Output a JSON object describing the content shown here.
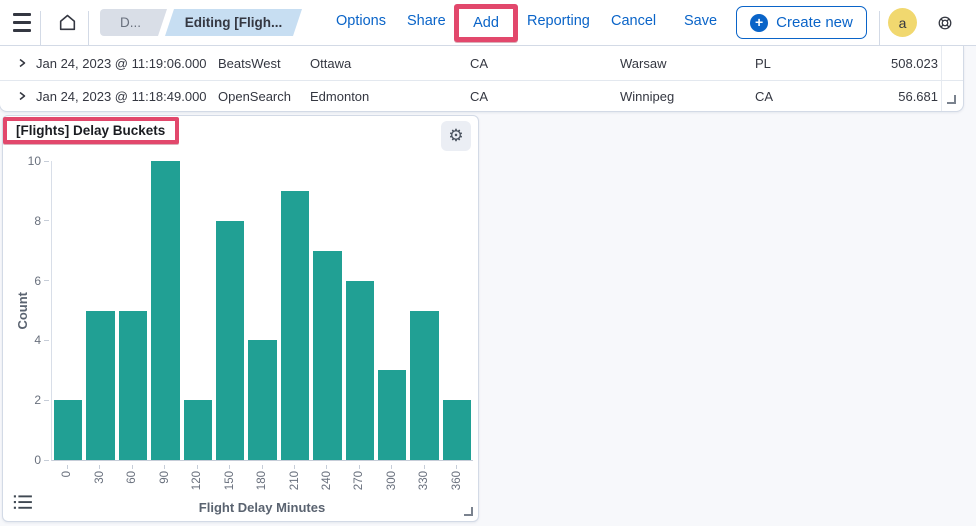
{
  "topnav": {
    "breadcrumbs": [
      "D...",
      "Editing [Fligh..."
    ],
    "links": [
      "Options",
      "Share",
      "Add",
      "Reporting",
      "Cancel",
      "Save"
    ],
    "create_new_label": "Create new",
    "avatar_initial": "a"
  },
  "table": {
    "rows": [
      {
        "timestamp": "Jan 24, 2023 @ 11:19:06.000",
        "carrier": "BeatsWest",
        "origin_city": "Ottawa",
        "origin_country": "CA",
        "dest_city": "Warsaw",
        "dest_country": "PL",
        "distance": "508.023"
      },
      {
        "timestamp": "Jan 24, 2023 @ 11:18:49.000",
        "carrier": "OpenSearch",
        "origin_city": "Edmonton",
        "origin_country": "CA",
        "dest_city": "Winnipeg",
        "dest_country": "CA",
        "distance": "56.681"
      }
    ]
  },
  "panel": {
    "title": "[Flights] Delay Buckets"
  },
  "chart_data": {
    "type": "bar",
    "title": "[Flights] Delay Buckets",
    "categories": [
      "0",
      "30",
      "60",
      "90",
      "120",
      "150",
      "180",
      "210",
      "240",
      "270",
      "300",
      "330",
      "360"
    ],
    "values": [
      2,
      5,
      5,
      10,
      2,
      8,
      4,
      9,
      7,
      6,
      3,
      5,
      2
    ],
    "xlabel": "Flight Delay Minutes",
    "ylabel": "Count",
    "ylim": [
      0,
      10
    ],
    "yticks": [
      0,
      2,
      4,
      6,
      8,
      10
    ],
    "bar_color": "#21A094",
    "grid": false,
    "legend": "none"
  },
  "icons": {
    "menu": "menu-icon",
    "home": "home-icon",
    "plus": "+",
    "gear": "⚙",
    "help": "lifebuoy-icon",
    "expand_row": "chevron-right-icon",
    "legend_list": "list-icon",
    "resize_corner": "resize-handle"
  },
  "annotations": {
    "highlight_color": "#E2486C",
    "highlighted_items": [
      "Add",
      "[Flights] Delay Buckets"
    ]
  },
  "colors": {
    "link_blue": "#0A64C8",
    "bar_teal": "#21A094",
    "avatar_yellow": "#F1D86F",
    "breadcrumb_gray": "#D9DEE7",
    "breadcrumb_blue": "#C7DEF2",
    "panel_border": "#D3DAE6",
    "page_background": "#F7F8FB"
  }
}
